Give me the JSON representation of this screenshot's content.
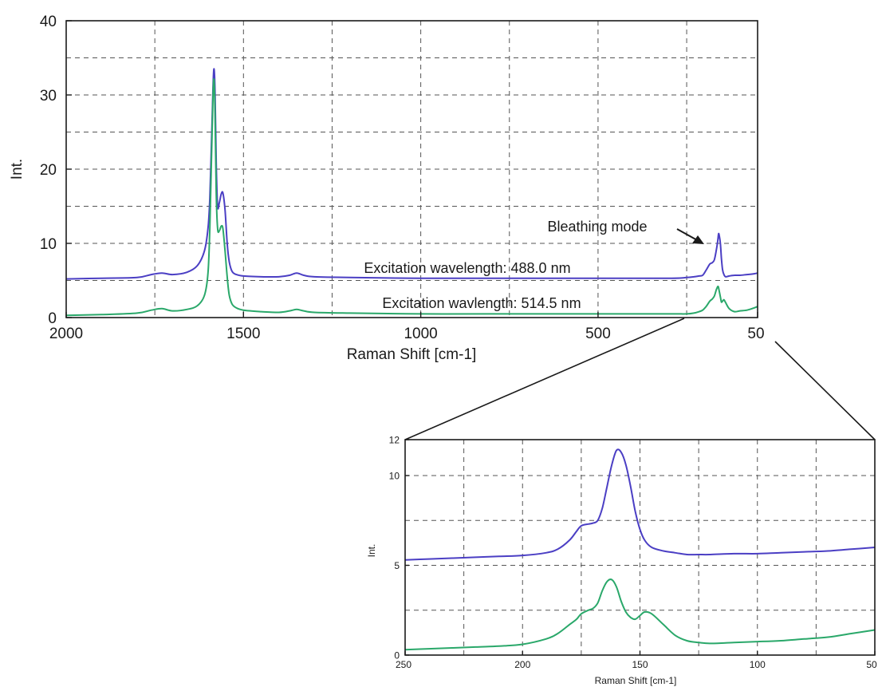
{
  "chart_data": [
    {
      "type": "line",
      "title": "",
      "xlabel": "Raman Shift [cm-1]",
      "ylabel": "Int.",
      "x_reversed": true,
      "xlim": [
        2000,
        50
      ],
      "ylim": [
        0,
        40
      ],
      "x_ticks": [
        2000,
        1500,
        1000,
        500,
        50
      ],
      "x_tick_labels": [
        "2000",
        "1500",
        "1000",
        "500",
        "50"
      ],
      "x_minor_gridlines": [
        1750,
        1250,
        750,
        250
      ],
      "y_ticks": [
        0,
        10,
        20,
        30,
        40
      ],
      "y_tick_labels": [
        "0",
        "10",
        "20",
        "30",
        "40"
      ],
      "y_minor_gridlines": [
        5,
        15,
        25,
        35
      ],
      "grid": true,
      "series": [
        {
          "color": "#4b3fc4",
          "x": [
            2000,
            1900,
            1800,
            1760,
            1730,
            1700,
            1660,
            1630,
            1610,
            1600,
            1595,
            1590,
            1586,
            1583,
            1580,
            1577,
            1573,
            1568,
            1563,
            1558,
            1552,
            1546,
            1540,
            1532,
            1520,
            1500,
            1450,
            1400,
            1370,
            1350,
            1330,
            1300,
            1200,
            1000,
            800,
            500,
            300,
            250,
            230,
            215,
            205,
            195,
            185,
            178,
            172,
            166,
            162,
            160,
            158,
            155,
            152,
            149,
            145,
            140,
            130,
            115,
            100,
            80,
            60,
            50
          ],
          "y": [
            5.2,
            5.3,
            5.4,
            5.8,
            6.0,
            5.8,
            6.1,
            7.0,
            9.0,
            12.0,
            16.0,
            24.0,
            31.0,
            33.5,
            30.0,
            21.0,
            15.0,
            15.5,
            16.6,
            16.8,
            14.5,
            10.0,
            7.5,
            6.2,
            5.8,
            5.6,
            5.5,
            5.5,
            5.7,
            6.0,
            5.7,
            5.5,
            5.4,
            5.3,
            5.3,
            5.3,
            5.3,
            5.4,
            5.5,
            5.6,
            5.7,
            6.4,
            7.2,
            7.4,
            7.8,
            9.2,
            10.5,
            11.3,
            11.0,
            10.0,
            8.0,
            6.5,
            5.8,
            5.5,
            5.6,
            5.7,
            5.7,
            5.8,
            5.9,
            6.0
          ]
        },
        {
          "color": "#2aa86a",
          "x": [
            2000,
            1900,
            1800,
            1760,
            1730,
            1700,
            1660,
            1630,
            1610,
            1600,
            1595,
            1590,
            1586,
            1583,
            1580,
            1577,
            1573,
            1568,
            1563,
            1558,
            1552,
            1546,
            1540,
            1532,
            1520,
            1500,
            1450,
            1400,
            1370,
            1350,
            1330,
            1300,
            1200,
            1000,
            800,
            500,
            300,
            250,
            230,
            215,
            205,
            195,
            185,
            178,
            172,
            166,
            162,
            160,
            158,
            155,
            152,
            149,
            145,
            140,
            130,
            115,
            100,
            80,
            60,
            50
          ],
          "y": [
            0.3,
            0.4,
            0.6,
            1.0,
            1.2,
            0.9,
            1.1,
            1.6,
            3.0,
            6.0,
            12.0,
            22.0,
            30.0,
            32.0,
            27.0,
            17.0,
            12.0,
            11.7,
            12.3,
            12.0,
            9.0,
            5.5,
            3.0,
            1.8,
            1.3,
            1.0,
            0.8,
            0.7,
            0.9,
            1.1,
            0.9,
            0.7,
            0.6,
            0.5,
            0.5,
            0.5,
            0.5,
            0.5,
            0.6,
            0.8,
            1.0,
            1.5,
            2.2,
            2.5,
            2.9,
            3.8,
            4.2,
            4.0,
            3.5,
            2.8,
            2.1,
            2.2,
            2.4,
            2.0,
            1.2,
            0.8,
            0.9,
            1.0,
            1.3,
            1.5
          ]
        }
      ],
      "annotations": [
        {
          "text": "Excitation wavelength: 488.0 nm",
          "x": 770,
          "y": 6.6
        },
        {
          "text": "Excitation wavlength: 514.5 nm",
          "x": 750,
          "y": 1.2
        },
        {
          "text": "Bleathing mode",
          "x": 340,
          "y": 11.4,
          "arrow_to": [
            155,
            9.3
          ]
        }
      ]
    },
    {
      "type": "line",
      "title": "",
      "xlabel": "Raman Shift [cm-1]",
      "ylabel": "Int.",
      "x_reversed": true,
      "xlim": [
        250,
        50
      ],
      "ylim": [
        0,
        12
      ],
      "x_ticks": [
        250,
        200,
        150,
        100,
        50
      ],
      "x_tick_labels": [
        "250",
        "200",
        "150",
        "100",
        "50"
      ],
      "x_minor_gridlines": [
        225,
        175,
        125,
        75
      ],
      "y_ticks": [
        0,
        5,
        10,
        12
      ],
      "y_tick_labels": [
        "0",
        "5",
        "10",
        "12"
      ],
      "y_minor_gridlines": [
        2.5,
        7.5
      ],
      "grid": true,
      "series": [
        {
          "color": "#4b3fc4",
          "x": [
            250,
            240,
            230,
            220,
            210,
            200,
            190,
            185,
            180,
            177,
            175,
            172,
            170,
            168,
            166,
            164,
            162,
            160,
            158,
            156,
            154,
            152,
            150,
            148,
            145,
            140,
            135,
            130,
            125,
            120,
            110,
            100,
            90,
            80,
            70,
            60,
            50
          ],
          "y": [
            5.3,
            5.35,
            5.4,
            5.45,
            5.5,
            5.55,
            5.7,
            5.9,
            6.4,
            6.9,
            7.2,
            7.3,
            7.35,
            7.5,
            8.2,
            9.4,
            10.6,
            11.4,
            11.3,
            10.6,
            9.4,
            8.0,
            7.0,
            6.4,
            6.0,
            5.8,
            5.7,
            5.6,
            5.6,
            5.6,
            5.65,
            5.65,
            5.7,
            5.75,
            5.8,
            5.9,
            6.0
          ]
        },
        {
          "color": "#2aa86a",
          "x": [
            250,
            240,
            230,
            220,
            210,
            200,
            190,
            185,
            180,
            177,
            175,
            172,
            170,
            168,
            166,
            164,
            162,
            160,
            158,
            156,
            154,
            152,
            150,
            148,
            145,
            140,
            135,
            130,
            125,
            120,
            110,
            100,
            90,
            80,
            70,
            60,
            50
          ],
          "y": [
            0.3,
            0.35,
            0.4,
            0.45,
            0.5,
            0.6,
            0.9,
            1.2,
            1.7,
            2.0,
            2.3,
            2.5,
            2.6,
            2.9,
            3.6,
            4.1,
            4.2,
            3.8,
            3.0,
            2.4,
            2.1,
            2.0,
            2.2,
            2.4,
            2.3,
            1.7,
            1.1,
            0.8,
            0.7,
            0.65,
            0.7,
            0.75,
            0.8,
            0.9,
            1.0,
            1.2,
            1.4
          ]
        }
      ],
      "annotations": []
    }
  ]
}
